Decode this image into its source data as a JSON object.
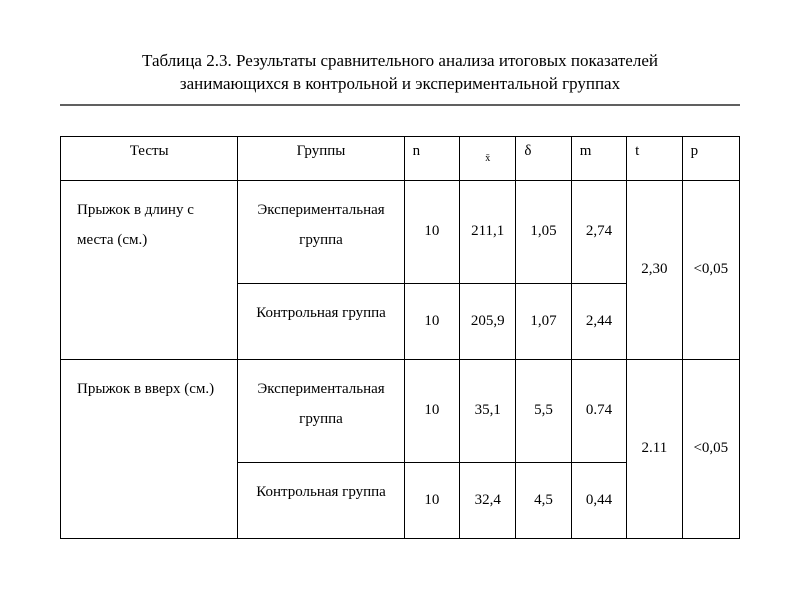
{
  "title": {
    "line1": "Таблица 2.3. Результаты сравнительного анализа итоговых  показателей",
    "line2": "занимающихся в контрольной и экспериментальной группах"
  },
  "headers": {
    "tests": "Тесты",
    "groups": "Группы",
    "n": "n",
    "xbar": "x̄",
    "delta": "δ",
    "m": "m",
    "t": "t",
    "p": "p"
  },
  "rows": [
    {
      "test": "Прыжок в длину с места (см.)",
      "exp_group": "Экспериментальная группа",
      "ctrl_group": "Контрольная группа",
      "exp": {
        "n": "10",
        "x": "211,1",
        "d": "1,05",
        "m": "2,74"
      },
      "ctrl": {
        "n": "10",
        "x": "205,9",
        "d": "1,07",
        "m": "2,44"
      },
      "t": "2,30",
      "p": "<0,05"
    },
    {
      "test": "Прыжок в вверх (см.)",
      "exp_group": "Экспериментальная группа",
      "ctrl_group": "Контрольная группа",
      "exp": {
        "n": "10",
        "x": "35,1",
        "d": "5,5",
        "m": "0.74"
      },
      "ctrl": {
        "n": "10",
        "x": "32,4",
        "d": "4,5",
        "m": "0,44"
      },
      "t": "2.11",
      "p": "<0,05"
    }
  ],
  "style": {
    "font_family": "Times New Roman",
    "title_fontsize": 17,
    "table_fontsize": 15,
    "border_color": "#000000",
    "hr_color": "#606060",
    "background_color": "#ffffff",
    "text_color": "#000000"
  }
}
